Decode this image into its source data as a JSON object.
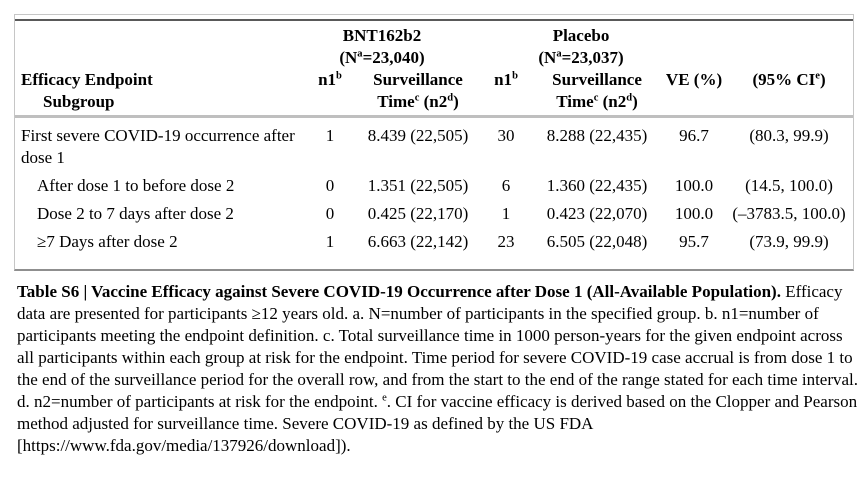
{
  "table": {
    "groups": [
      {
        "name": "BNT162b2",
        "n_open": "(N",
        "n_sup": "a",
        "n_rest": "=23,040)"
      },
      {
        "name": "Placebo",
        "n_open": "(N",
        "n_sup": "a",
        "n_rest": "=23,037)"
      }
    ],
    "columns": {
      "endpoint_line1": "Efficacy Endpoint",
      "endpoint_line2": "Subgroup",
      "n1_base": "n1",
      "n1_sup": "b",
      "surv_line1": "Surveillance",
      "surv_time": "Time",
      "surv_time_sup": "c",
      "surv_n2": " (n2",
      "surv_n2_sup": "d",
      "surv_close": ")",
      "ve": "VE (%)",
      "ci_open": "(95% CI",
      "ci_sup": "e",
      "ci_close": ")"
    },
    "rows": [
      {
        "label": "First severe COVID-19 occurrence after dose 1",
        "n1_bnt": "1",
        "surv_bnt": "8.439 (22,505)",
        "n1_placebo": "30",
        "surv_placebo": "8.288 (22,435)",
        "ve": "96.7",
        "ci": "(80.3, 99.9)"
      },
      {
        "label": "After dose 1 to before dose 2",
        "n1_bnt": "0",
        "surv_bnt": "1.351 (22,505)",
        "n1_placebo": "6",
        "surv_placebo": "1.360 (22,435)",
        "ve": "100.0",
        "ci": "(14.5, 100.0)"
      },
      {
        "label": "Dose 2 to 7 days after dose 2",
        "n1_bnt": "0",
        "surv_bnt": "0.425 (22,170)",
        "n1_placebo": "1",
        "surv_placebo": "0.423 (22,070)",
        "ve": "100.0",
        "ci": "(–3783.5, 100.0)"
      },
      {
        "label": "≥7 Days after dose 2",
        "n1_bnt": "1",
        "surv_bnt": "6.663 (22,142)",
        "n1_placebo": "23",
        "surv_placebo": "6.505 (22,048)",
        "ve": "95.7",
        "ci": "(73.9, 99.9)"
      }
    ]
  },
  "caption": {
    "bold": "Table S6 | Vaccine Efficacy against Severe COVID-19 Occurrence after Dose 1 (All-Available Population).",
    "body_1": " Efficacy data are presented for participants ≥12 years old. a. N=number of participants in the specified group. b. n1=number of participants meeting the endpoint definition. c. Total surveillance time in 1000 person-years for the given endpoint across all participants within each group at risk for the endpoint. Time period for severe COVID-19 case accrual is from dose 1 to the end of the surveillance period for the overall row, and from the start to the end of the range stated for each time interval. d. n2=number of participants at risk for the endpoint. ",
    "sup": "e",
    "body_2": ". CI for vaccine efficacy is derived based on the Clopper and Pearson method adjusted for surveillance time. Severe COVID-19 as defined by the US FDA [https://www.fda.gov/media/137926/download])."
  }
}
